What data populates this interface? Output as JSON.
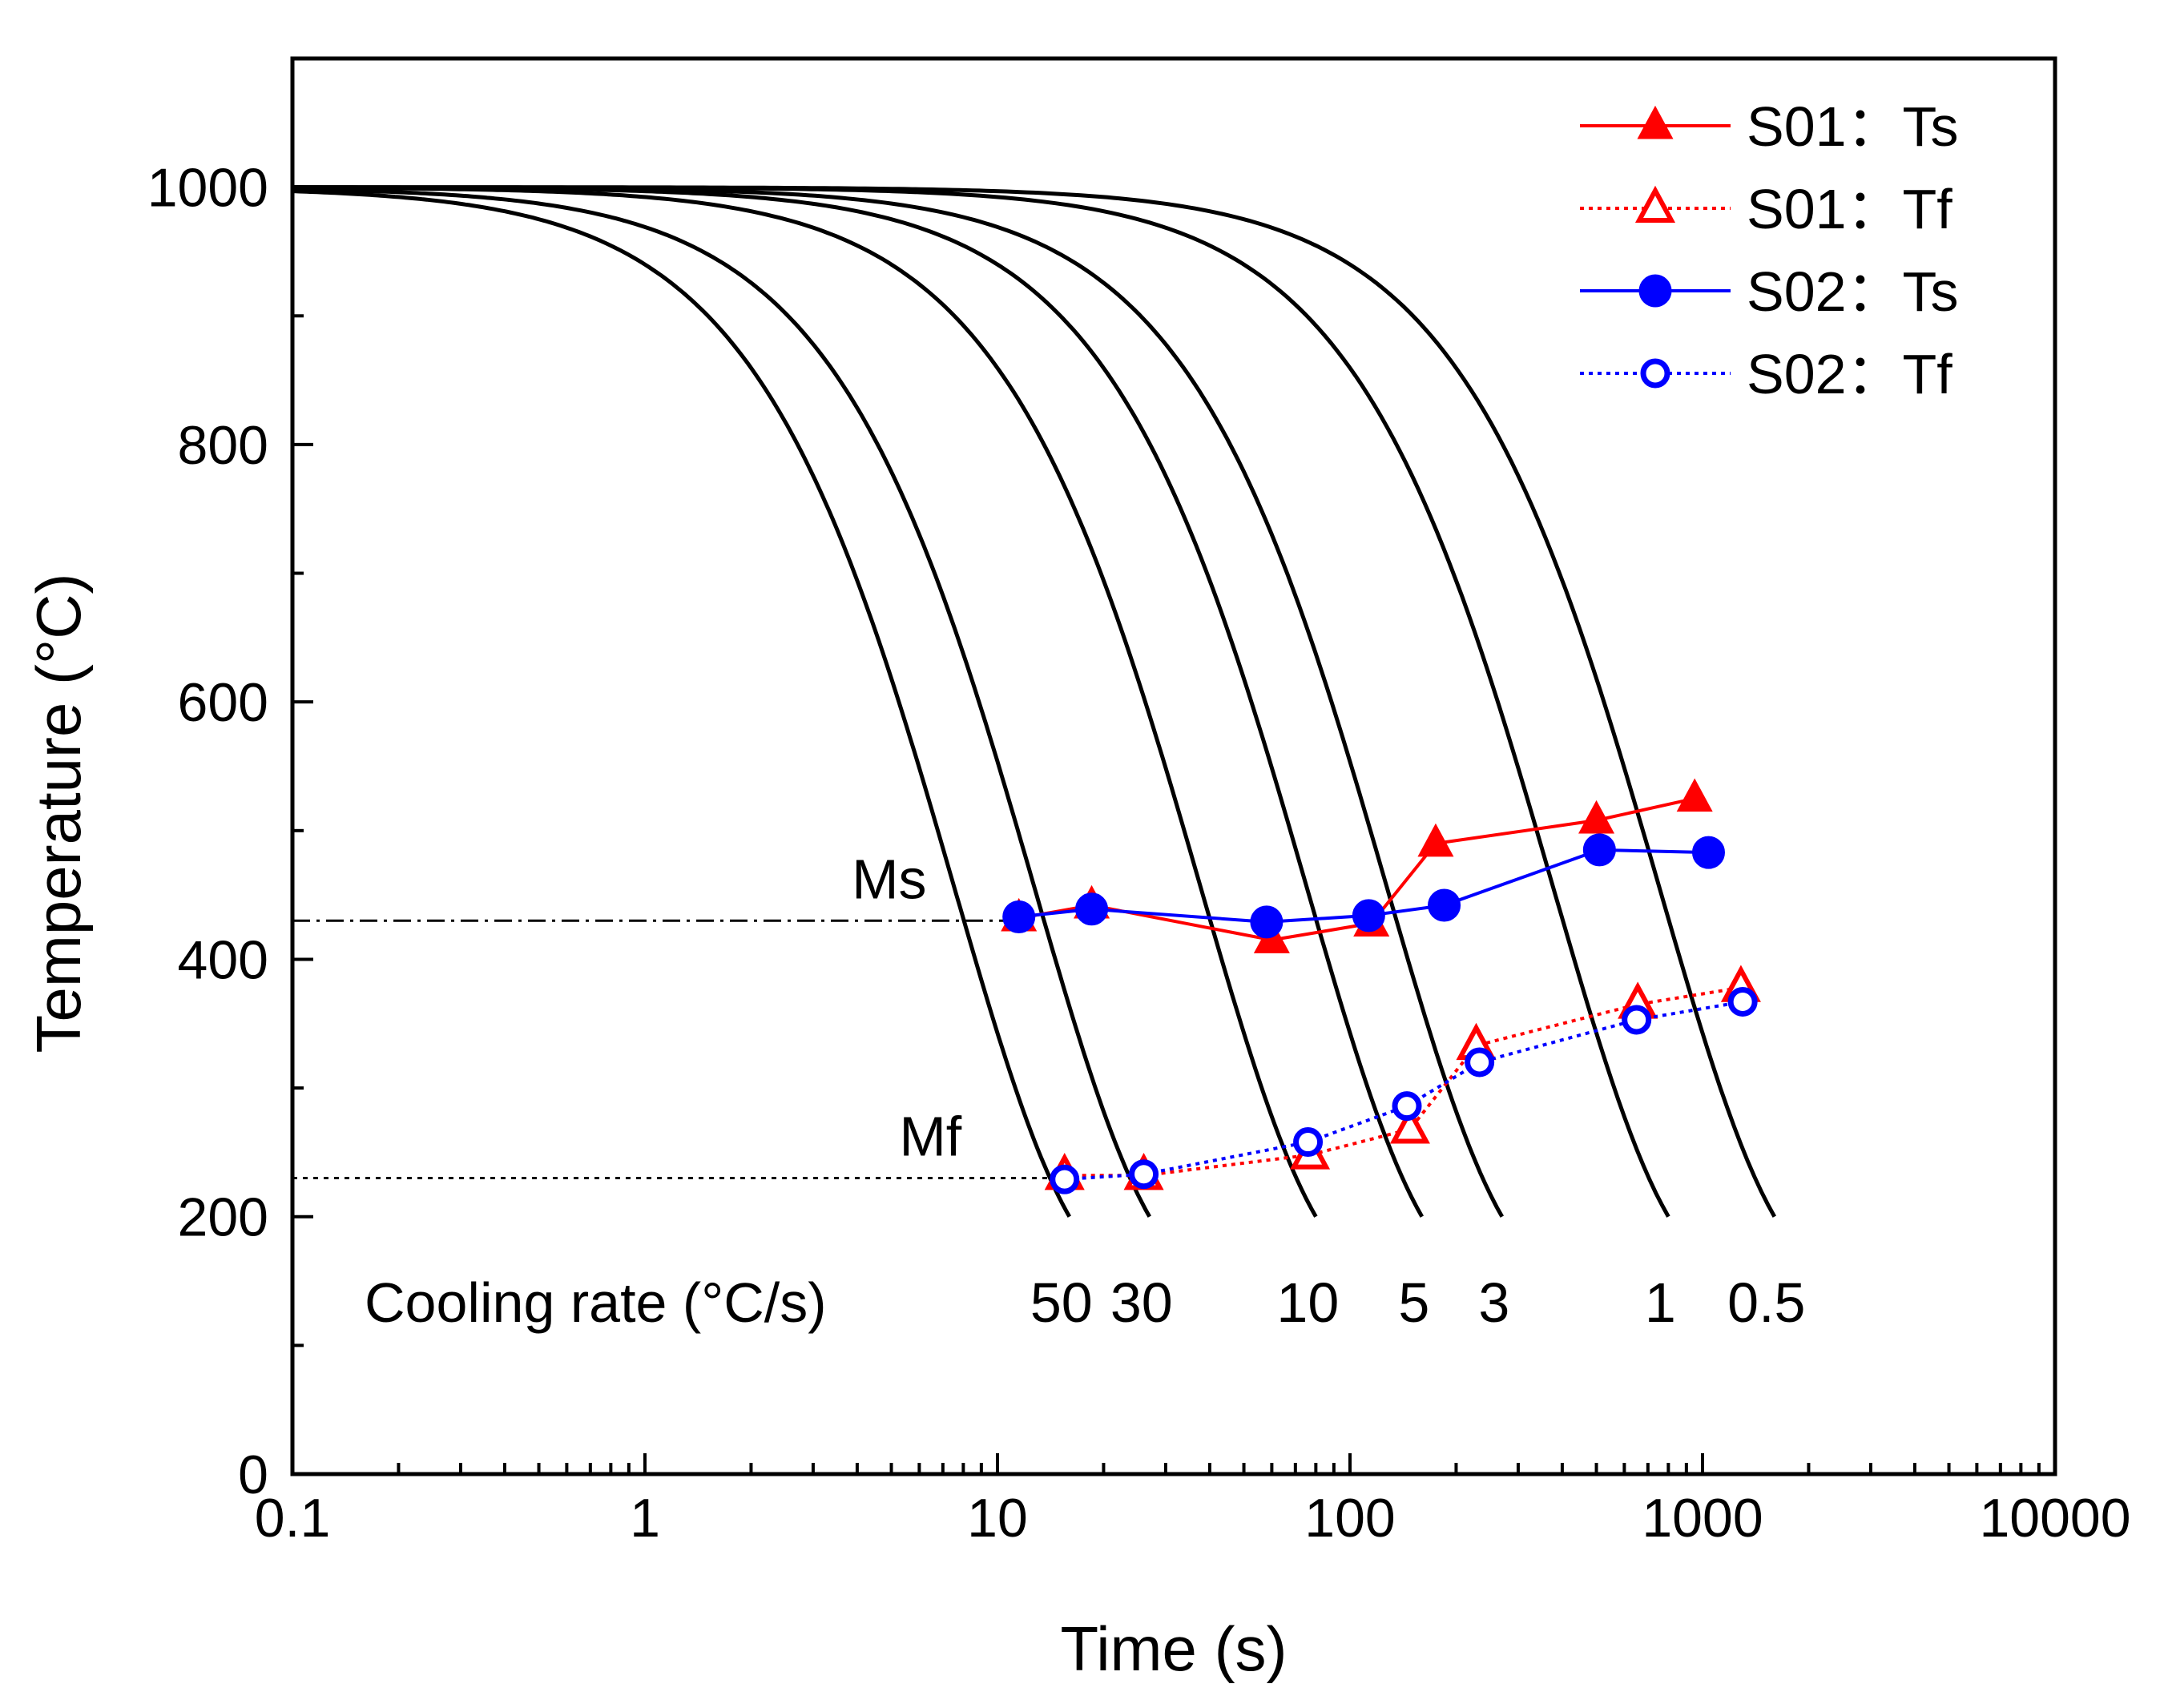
{
  "chart_data": {
    "type": "line",
    "title": "",
    "xlabel": "Time (s)",
    "ylabel": "Temperature (°C)",
    "xscale": "log",
    "xlim": [
      0.1,
      10000
    ],
    "ylim": [
      0,
      1100
    ],
    "x_tick_labels": [
      "0.1",
      "1",
      "10",
      "100",
      "1000",
      "10000"
    ],
    "x_tick_values": [
      0.1,
      1,
      10,
      100,
      1000,
      10000
    ],
    "y_tick_labels": [
      "0",
      "200",
      "400",
      "600",
      "800",
      "1000"
    ],
    "y_tick_values": [
      0,
      200,
      400,
      600,
      800,
      1000
    ],
    "legend_position": "top-right",
    "cooling_curves": {
      "label": "Cooling rate (°C/s)",
      "start_temperature": 1000,
      "start_time": 0.1,
      "end_temperature": 200,
      "curves": [
        {
          "rate_label": "50",
          "end_time": 16,
          "label_time": 16
        },
        {
          "rate_label": "30",
          "end_time": 27,
          "label_time": 27
        },
        {
          "rate_label": "10",
          "end_time": 80,
          "label_time": 80
        },
        {
          "rate_label": "5",
          "end_time": 160,
          "label_time": 160
        },
        {
          "rate_label": "3",
          "end_time": 270,
          "label_time": 270
        },
        {
          "rate_label": "1",
          "end_time": 800,
          "label_time": 800
        },
        {
          "rate_label": "0.5",
          "end_time": 1600,
          "label_time": 1600
        }
      ]
    },
    "reference_lines": [
      {
        "name": "Ms",
        "label": "Ms",
        "y": 430,
        "x_end": 11,
        "style": "dashdot"
      },
      {
        "name": "Mf",
        "label": "Mf",
        "y": 230,
        "x_end": 15,
        "style": "dotted"
      }
    ],
    "series": [
      {
        "name": "S01：Ts",
        "color": "#ff0000",
        "marker": "triangle-filled",
        "line": "solid",
        "x": [
          11.5,
          18.5,
          60,
          115,
          175,
          500,
          950
        ],
        "y": [
          432,
          442,
          415,
          428,
          490,
          508,
          525
        ]
      },
      {
        "name": "S01：Tf",
        "color": "#ff0000",
        "marker": "triangle-open",
        "line": "dotted",
        "x": [
          15.5,
          26,
          77,
          148,
          228,
          655,
          1285
        ],
        "y": [
          232,
          232,
          248,
          268,
          333,
          365,
          378
        ]
      },
      {
        "name": "S02：Ts",
        "color": "#0000ff",
        "marker": "circle-filled",
        "line": "solid",
        "x": [
          11.5,
          18.5,
          58,
          113,
          185,
          510,
          1040
        ],
        "y": [
          433,
          439,
          429,
          434,
          442,
          485,
          483
        ]
      },
      {
        "name": "S02：Tf",
        "color": "#0000ff",
        "marker": "circle-open",
        "line": "dotted",
        "x": [
          15.5,
          26,
          76,
          145,
          233,
          650,
          1300
        ],
        "y": [
          229,
          233,
          258,
          286,
          320,
          353,
          367
        ]
      }
    ]
  }
}
